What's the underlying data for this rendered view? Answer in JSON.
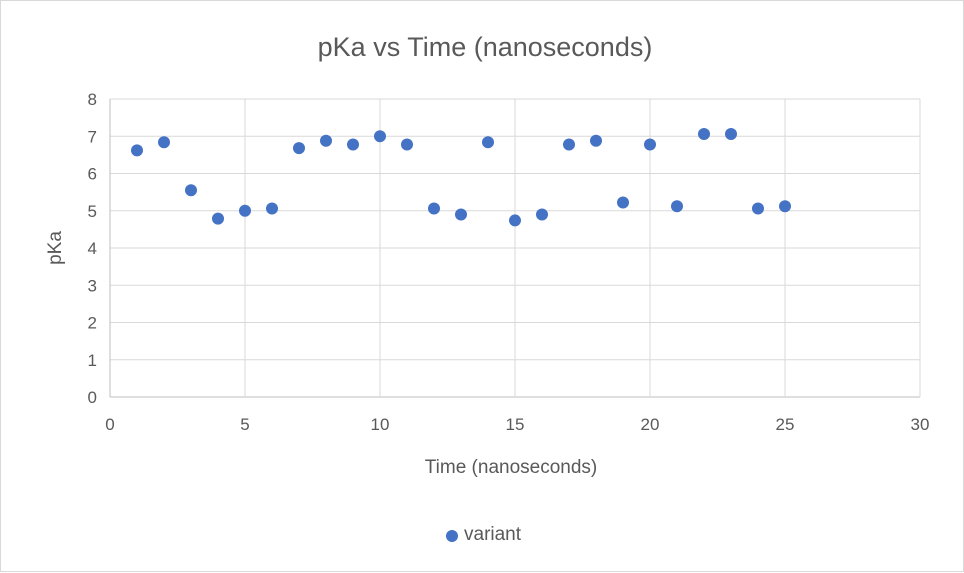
{
  "chart_data": {
    "type": "scatter",
    "title": "pKa vs Time (nanoseconds)",
    "xlabel": "Time (nanoseconds)",
    "ylabel": "pKa",
    "xlim": [
      0,
      30
    ],
    "ylim": [
      0,
      8
    ],
    "x_ticks": [
      "0",
      "5",
      "10",
      "15",
      "20",
      "25",
      "30"
    ],
    "y_ticks": [
      "0",
      "1",
      "2",
      "3",
      "4",
      "5",
      "6",
      "7",
      "8"
    ],
    "grid": true,
    "legend_position": "bottom",
    "color": "#4472c4",
    "series": [
      {
        "name": "variant",
        "x": [
          1,
          2,
          3,
          4,
          5,
          6,
          7,
          8,
          9,
          10,
          11,
          12,
          13,
          14,
          15,
          16,
          17,
          18,
          19,
          20,
          21,
          22,
          23,
          24,
          25
        ],
        "y": [
          6.62,
          6.84,
          5.55,
          4.79,
          5.0,
          5.06,
          6.68,
          6.88,
          6.78,
          7.0,
          6.78,
          5.06,
          4.9,
          6.84,
          4.74,
          4.9,
          6.78,
          6.88,
          5.22,
          6.78,
          5.12,
          7.06,
          7.06,
          5.06,
          5.12
        ]
      }
    ]
  }
}
